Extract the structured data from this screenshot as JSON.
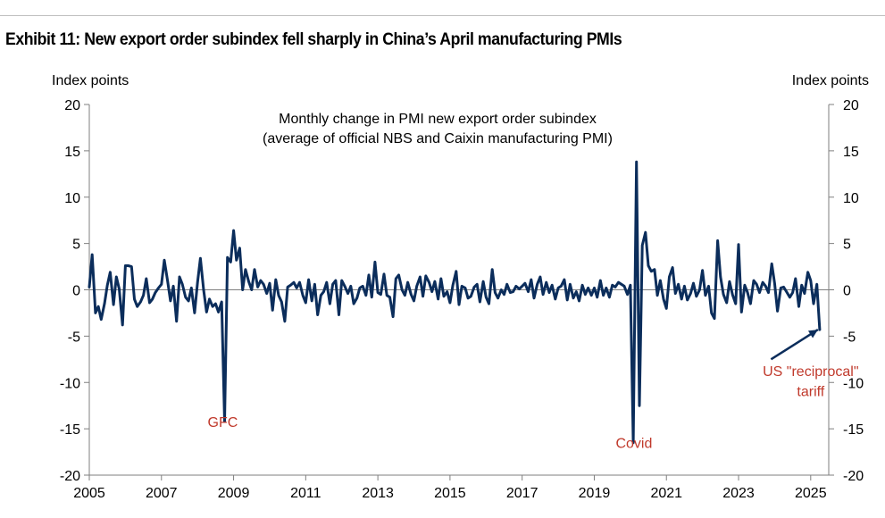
{
  "exhibit_title": "Exhibit 11: New export order subindex fell sharply in China’s April manufacturing PMIs",
  "colors": {
    "line": "#0b2d5b",
    "annotation": "#c0392b",
    "axis": "#7f7f7f"
  },
  "chart_data": {
    "type": "line",
    "title_lines": [
      "Monthly change in PMI new export order subindex",
      "(average of official NBS and Caixin manufacturing PMI)"
    ],
    "ylabel_left": "Index points",
    "ylabel_right": "Index points",
    "ylim": [
      -20,
      20
    ],
    "yticks": [
      -20,
      -15,
      -10,
      -5,
      0,
      5,
      10,
      15,
      20
    ],
    "xlim": [
      2005.0,
      2025.5
    ],
    "xticks": [
      2005,
      2007,
      2009,
      2011,
      2013,
      2015,
      2017,
      2019,
      2021,
      2023,
      2025
    ],
    "grid": false,
    "annotations": [
      {
        "text": "GFC",
        "x": 2008.7,
        "y": -14.2
      },
      {
        "text": "Covid",
        "x": 2020.1,
        "y": -16.5
      },
      {
        "text": "US \"reciprocal\"",
        "x": 2025.0,
        "y": -8.7
      },
      {
        "text": "tariff",
        "x": 2025.0,
        "y": -10.9
      }
    ],
    "arrow": {
      "from": [
        2023.9,
        -7.5
      ],
      "to": [
        2025.2,
        -4.3
      ]
    },
    "series": [
      {
        "values": [
          [
            2005.0,
            0.3
          ],
          [
            2005.08,
            3.8
          ],
          [
            2005.17,
            -2.5
          ],
          [
            2005.25,
            -1.8
          ],
          [
            2005.33,
            -3.2
          ],
          [
            2005.42,
            -1.5
          ],
          [
            2005.5,
            0.5
          ],
          [
            2005.58,
            1.9
          ],
          [
            2005.67,
            -1.6
          ],
          [
            2005.75,
            1.4
          ],
          [
            2005.83,
            0.1
          ],
          [
            2005.92,
            -3.8
          ],
          [
            2006.0,
            2.6
          ],
          [
            2006.08,
            2.6
          ],
          [
            2006.17,
            2.5
          ],
          [
            2006.25,
            -1.0
          ],
          [
            2006.33,
            -1.8
          ],
          [
            2006.42,
            -1.3
          ],
          [
            2006.5,
            -0.6
          ],
          [
            2006.58,
            1.2
          ],
          [
            2006.67,
            -1.4
          ],
          [
            2006.75,
            -1.0
          ],
          [
            2006.83,
            -0.3
          ],
          [
            2006.92,
            0.2
          ],
          [
            2007.0,
            0.6
          ],
          [
            2007.08,
            3.2
          ],
          [
            2007.17,
            1.0
          ],
          [
            2007.25,
            -1.2
          ],
          [
            2007.33,
            0.4
          ],
          [
            2007.42,
            -3.4
          ],
          [
            2007.5,
            1.4
          ],
          [
            2007.58,
            0.6
          ],
          [
            2007.67,
            -0.8
          ],
          [
            2007.75,
            -1.2
          ],
          [
            2007.83,
            0.2
          ],
          [
            2007.92,
            -2.5
          ],
          [
            2008.0,
            0.8
          ],
          [
            2008.08,
            3.4
          ],
          [
            2008.17,
            0.0
          ],
          [
            2008.25,
            -2.4
          ],
          [
            2008.33,
            -1.0
          ],
          [
            2008.42,
            -1.8
          ],
          [
            2008.5,
            -1.5
          ],
          [
            2008.58,
            -2.4
          ],
          [
            2008.67,
            -1.3
          ],
          [
            2008.75,
            -14.2
          ],
          [
            2008.83,
            3.5
          ],
          [
            2008.92,
            3.0
          ],
          [
            2009.0,
            6.4
          ],
          [
            2009.08,
            3.2
          ],
          [
            2009.17,
            4.5
          ],
          [
            2009.25,
            0.0
          ],
          [
            2009.33,
            2.2
          ],
          [
            2009.42,
            0.9
          ],
          [
            2009.5,
            0.0
          ],
          [
            2009.58,
            2.2
          ],
          [
            2009.67,
            0.3
          ],
          [
            2009.75,
            1.0
          ],
          [
            2009.83,
            0.6
          ],
          [
            2009.92,
            -0.4
          ],
          [
            2010.0,
            0.7
          ],
          [
            2010.08,
            -2.2
          ],
          [
            2010.17,
            1.1
          ],
          [
            2010.25,
            -0.6
          ],
          [
            2010.33,
            -1.3
          ],
          [
            2010.42,
            -3.4
          ],
          [
            2010.5,
            0.3
          ],
          [
            2010.58,
            0.5
          ],
          [
            2010.67,
            0.8
          ],
          [
            2010.75,
            0.2
          ],
          [
            2010.83,
            0.8
          ],
          [
            2010.92,
            -0.6
          ],
          [
            2011.0,
            -1.4
          ],
          [
            2011.08,
            1.1
          ],
          [
            2011.17,
            -1.2
          ],
          [
            2011.25,
            0.6
          ],
          [
            2011.33,
            -2.7
          ],
          [
            2011.42,
            -0.6
          ],
          [
            2011.5,
            -0.2
          ],
          [
            2011.58,
            0.8
          ],
          [
            2011.67,
            -1.5
          ],
          [
            2011.75,
            0.6
          ],
          [
            2011.83,
            1.0
          ],
          [
            2011.92,
            -2.7
          ],
          [
            2012.0,
            1.0
          ],
          [
            2012.08,
            0.4
          ],
          [
            2012.17,
            -0.4
          ],
          [
            2012.25,
            0.4
          ],
          [
            2012.33,
            -1.5
          ],
          [
            2012.42,
            -0.9
          ],
          [
            2012.5,
            0.2
          ],
          [
            2012.58,
            0.4
          ],
          [
            2012.67,
            -0.6
          ],
          [
            2012.75,
            1.6
          ],
          [
            2012.83,
            -0.8
          ],
          [
            2012.92,
            3.0
          ],
          [
            2013.0,
            -0.3
          ],
          [
            2013.08,
            -0.5
          ],
          [
            2013.17,
            1.7
          ],
          [
            2013.25,
            -0.6
          ],
          [
            2013.33,
            -0.8
          ],
          [
            2013.42,
            -2.9
          ],
          [
            2013.5,
            1.2
          ],
          [
            2013.58,
            1.6
          ],
          [
            2013.67,
            0.0
          ],
          [
            2013.75,
            -0.6
          ],
          [
            2013.83,
            0.8
          ],
          [
            2013.92,
            -0.5
          ],
          [
            2014.0,
            -1.2
          ],
          [
            2014.08,
            0.4
          ],
          [
            2014.17,
            1.4
          ],
          [
            2014.25,
            -0.7
          ],
          [
            2014.33,
            1.5
          ],
          [
            2014.42,
            0.8
          ],
          [
            2014.5,
            -0.2
          ],
          [
            2014.58,
            0.9
          ],
          [
            2014.67,
            -1.0
          ],
          [
            2014.75,
            1.2
          ],
          [
            2014.83,
            -0.7
          ],
          [
            2014.92,
            -0.2
          ],
          [
            2015.0,
            -1.4
          ],
          [
            2015.08,
            0.5
          ],
          [
            2015.17,
            2.0
          ],
          [
            2015.25,
            -1.6
          ],
          [
            2015.33,
            0.4
          ],
          [
            2015.42,
            0.2
          ],
          [
            2015.5,
            -0.9
          ],
          [
            2015.58,
            -0.7
          ],
          [
            2015.67,
            0.3
          ],
          [
            2015.75,
            0.6
          ],
          [
            2015.83,
            -1.3
          ],
          [
            2015.92,
            0.9
          ],
          [
            2016.0,
            -0.8
          ],
          [
            2016.08,
            -1.5
          ],
          [
            2016.17,
            2.2
          ],
          [
            2016.25,
            -0.3
          ],
          [
            2016.33,
            -0.9
          ],
          [
            2016.42,
            0.0
          ],
          [
            2016.5,
            -0.5
          ],
          [
            2016.58,
            0.6
          ],
          [
            2016.67,
            -0.3
          ],
          [
            2016.75,
            -0.2
          ],
          [
            2016.83,
            0.4
          ],
          [
            2016.92,
            0.1
          ],
          [
            2017.0,
            0.4
          ],
          [
            2017.08,
            0.7
          ],
          [
            2017.17,
            -0.2
          ],
          [
            2017.25,
            1.1
          ],
          [
            2017.33,
            -0.9
          ],
          [
            2017.42,
            0.6
          ],
          [
            2017.5,
            1.4
          ],
          [
            2017.58,
            -0.5
          ],
          [
            2017.67,
            0.8
          ],
          [
            2017.75,
            -0.3
          ],
          [
            2017.83,
            0.5
          ],
          [
            2017.92,
            -1.0
          ],
          [
            2018.0,
            0.2
          ],
          [
            2018.08,
            0.4
          ],
          [
            2018.17,
            1.1
          ],
          [
            2018.25,
            -1.1
          ],
          [
            2018.33,
            0.6
          ],
          [
            2018.42,
            -0.9
          ],
          [
            2018.5,
            -0.2
          ],
          [
            2018.58,
            -1.2
          ],
          [
            2018.67,
            0.5
          ],
          [
            2018.75,
            -0.5
          ],
          [
            2018.83,
            0.2
          ],
          [
            2018.92,
            -0.6
          ],
          [
            2019.0,
            0.2
          ],
          [
            2019.08,
            -0.8
          ],
          [
            2019.17,
            1.0
          ],
          [
            2019.25,
            -0.6
          ],
          [
            2019.33,
            0.2
          ],
          [
            2019.42,
            -0.8
          ],
          [
            2019.5,
            0.5
          ],
          [
            2019.58,
            0.3
          ],
          [
            2019.67,
            0.8
          ],
          [
            2019.75,
            0.6
          ],
          [
            2019.83,
            0.4
          ],
          [
            2019.92,
            -0.5
          ],
          [
            2020.0,
            0.5
          ],
          [
            2020.08,
            -16.5
          ],
          [
            2020.17,
            13.8
          ],
          [
            2020.25,
            -12.5
          ],
          [
            2020.33,
            4.8
          ],
          [
            2020.42,
            6.2
          ],
          [
            2020.5,
            2.6
          ],
          [
            2020.58,
            2.0
          ],
          [
            2020.67,
            2.2
          ],
          [
            2020.75,
            -0.6
          ],
          [
            2020.83,
            1.0
          ],
          [
            2020.92,
            -1.0
          ],
          [
            2021.0,
            -2.0
          ],
          [
            2021.08,
            1.4
          ],
          [
            2021.17,
            2.4
          ],
          [
            2021.25,
            -0.4
          ],
          [
            2021.33,
            0.6
          ],
          [
            2021.42,
            -1.0
          ],
          [
            2021.5,
            0.4
          ],
          [
            2021.58,
            -1.1
          ],
          [
            2021.67,
            -0.4
          ],
          [
            2021.75,
            0.7
          ],
          [
            2021.83,
            -0.7
          ],
          [
            2021.92,
            0.0
          ],
          [
            2022.0,
            2.1
          ],
          [
            2022.08,
            -0.6
          ],
          [
            2022.17,
            0.4
          ],
          [
            2022.25,
            -2.5
          ],
          [
            2022.33,
            -3.1
          ],
          [
            2022.42,
            5.3
          ],
          [
            2022.5,
            1.4
          ],
          [
            2022.58,
            -0.5
          ],
          [
            2022.67,
            -1.4
          ],
          [
            2022.75,
            0.9
          ],
          [
            2022.83,
            -0.5
          ],
          [
            2022.92,
            -1.5
          ],
          [
            2023.0,
            4.9
          ],
          [
            2023.08,
            -2.4
          ],
          [
            2023.17,
            0.5
          ],
          [
            2023.25,
            -0.3
          ],
          [
            2023.33,
            -1.5
          ],
          [
            2023.42,
            1.0
          ],
          [
            2023.5,
            0.6
          ],
          [
            2023.58,
            -0.3
          ],
          [
            2023.67,
            0.8
          ],
          [
            2023.75,
            0.4
          ],
          [
            2023.83,
            -0.3
          ],
          [
            2023.92,
            2.8
          ],
          [
            2024.0,
            0.7
          ],
          [
            2024.08,
            -2.3
          ],
          [
            2024.17,
            0.2
          ],
          [
            2024.25,
            0.3
          ],
          [
            2024.33,
            -0.2
          ],
          [
            2024.42,
            -0.8
          ],
          [
            2024.5,
            -0.3
          ],
          [
            2024.58,
            1.2
          ],
          [
            2024.67,
            -1.8
          ],
          [
            2024.75,
            0.5
          ],
          [
            2024.83,
            -0.4
          ],
          [
            2024.92,
            1.9
          ],
          [
            2025.0,
            1.0
          ],
          [
            2025.08,
            -1.5
          ],
          [
            2025.17,
            0.6
          ],
          [
            2025.25,
            -4.3
          ]
        ]
      }
    ]
  }
}
